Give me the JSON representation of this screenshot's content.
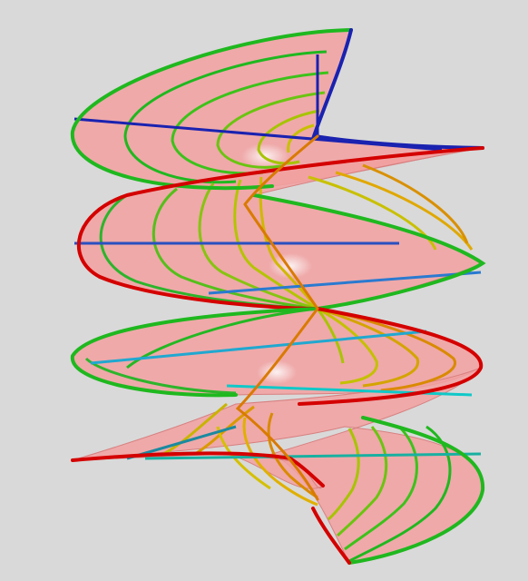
{
  "scene": {
    "background": "#d9d9d9",
    "surface_fill": "#f2a0a0",
    "surface_stroke": "#d88080",
    "highlight": "#ffffff",
    "palette": {
      "green": "#1fb81f",
      "red": "#d40000",
      "yellow": "#d8c400",
      "orange": "#d97a00",
      "blue": "#1a22b0",
      "light_blue": "#2a7ad0",
      "cyan": "#10c8c8"
    },
    "objects": [
      "helicoid-surface",
      "outer-edge-curves",
      "ruling-lines",
      "cross-section-curves",
      "specular-highlight"
    ]
  }
}
